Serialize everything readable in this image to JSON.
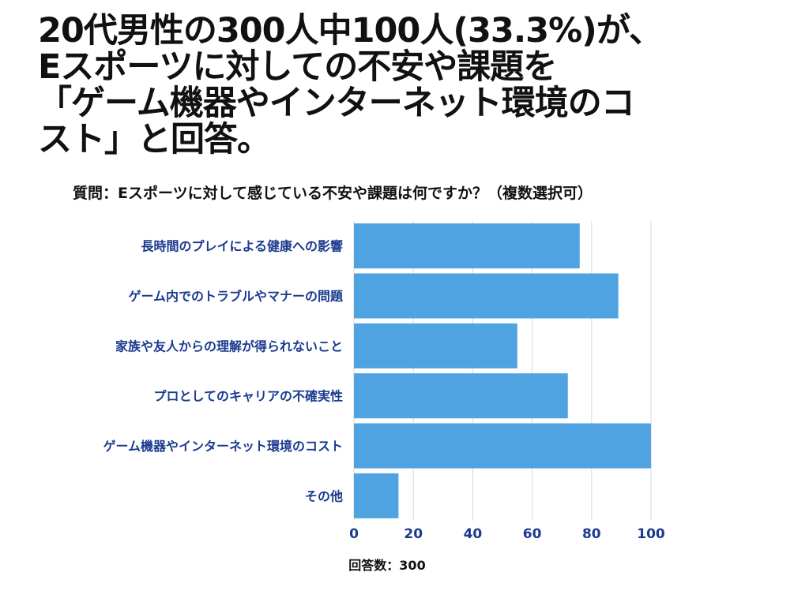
{
  "headline": {
    "lines": [
      "20代男性の300人中100人(33.3%)が、",
      "Eスポーツに対しての不安や課題を",
      "「ゲーム機器やインターネット環境のコ",
      "スト」と回答。"
    ]
  },
  "chart_data": {
    "type": "bar",
    "orientation": "horizontal",
    "title": "質問：Eスポーツに対して感じている不安や課題は何ですか？（複数選択可）",
    "categories": [
      "長時間のプレイによる健康への影響",
      "ゲーム内でのトラブルやマナーの問題",
      "家族や友人からの理解が得られないこと",
      "プロとしてのキャリアの不確実性",
      "ゲーム機器やインターネット環境のコスト",
      "その他"
    ],
    "values": [
      76,
      89,
      55,
      72,
      100,
      15
    ],
    "xlim": [
      0,
      100
    ],
    "xticks": [
      "0",
      "20",
      "40",
      "60",
      "80",
      "100"
    ],
    "xlabel": "回答数：300",
    "ylabel": "",
    "grid": true,
    "legend": "none",
    "colors": {
      "bar": "#4fa3e0",
      "category_label": "#1a3a8f",
      "tick_label": "#1a3a8f",
      "gridline": "#d9d9d9",
      "xlabel": "#111111"
    }
  }
}
